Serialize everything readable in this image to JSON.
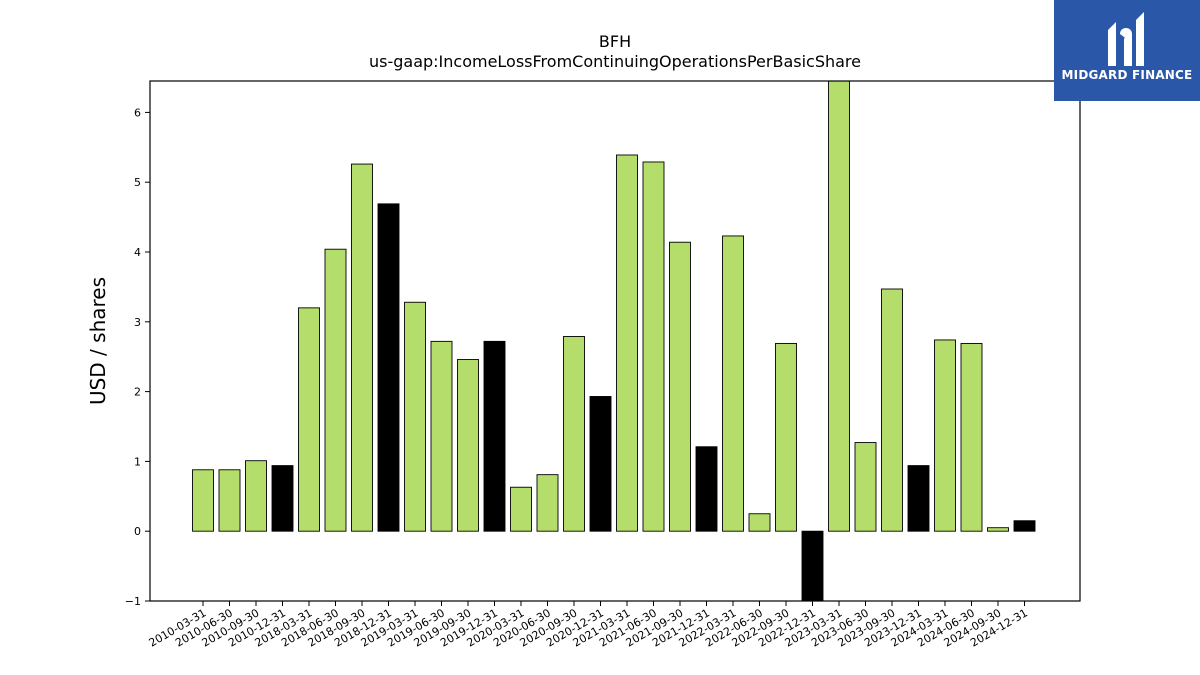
{
  "chart_data": {
    "type": "bar",
    "title": "BFH",
    "subtitle": "us-gaap:IncomeLossFromContinuingOperationsPerBasicShare",
    "xlabel": "",
    "ylabel": "USD / shares",
    "ylim": [
      -1,
      6.45
    ],
    "yticks": [
      -1,
      0,
      1,
      2,
      3,
      4,
      5,
      6
    ],
    "grid": false,
    "colors": {
      "quarter": "#b5dd6b",
      "year_end": "#000000",
      "edge": "#000000"
    },
    "categories": [
      "2010-03-31",
      "2010-06-30",
      "2010-09-30",
      "2010-12-31",
      "2018-03-31",
      "2018-06-30",
      "2018-09-30",
      "2018-12-31",
      "2019-03-31",
      "2019-06-30",
      "2019-09-30",
      "2019-12-31",
      "2020-03-31",
      "2020-06-30",
      "2020-09-30",
      "2020-12-31",
      "2021-03-31",
      "2021-06-30",
      "2021-09-30",
      "2021-12-31",
      "2022-03-31",
      "2022-06-30",
      "2022-09-30",
      "2022-12-31",
      "2023-03-31",
      "2023-06-30",
      "2023-09-30",
      "2023-12-31",
      "2024-03-31",
      "2024-06-30",
      "2024-09-30",
      "2024-12-31"
    ],
    "values": [
      0.88,
      0.88,
      1.01,
      0.94,
      3.2,
      4.04,
      5.26,
      4.69,
      3.28,
      2.72,
      2.46,
      2.72,
      0.63,
      0.81,
      2.79,
      1.93,
      5.39,
      5.29,
      4.14,
      1.21,
      4.23,
      0.25,
      2.69,
      -1.0,
      6.45,
      1.27,
      3.47,
      0.94,
      2.74,
      2.69,
      0.05,
      0.15
    ]
  },
  "logo": {
    "text": "MIDGARD FINANCE"
  }
}
